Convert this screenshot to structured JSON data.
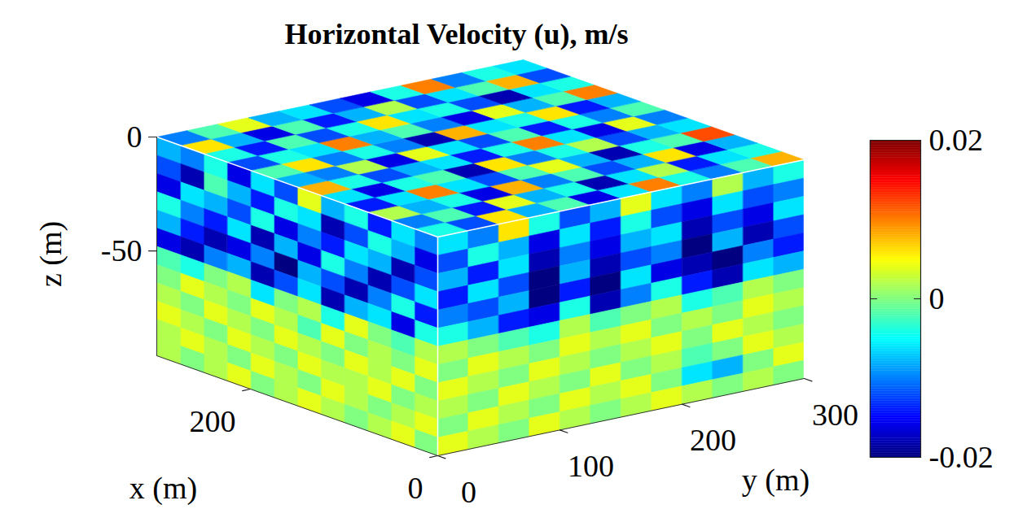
{
  "chart_data": {
    "type": "volume",
    "title": "Horizontal Velocity (u), m/s",
    "xlabel": "x (m)",
    "ylabel": "y (m)",
    "zlabel": "z (m)",
    "xlim": [
      0,
      300
    ],
    "ylim": [
      0,
      300
    ],
    "zlim": [
      -96,
      0
    ],
    "xticks": [
      0,
      200
    ],
    "yticks": [
      0,
      100,
      200,
      300
    ],
    "zticks": [
      0,
      -50
    ],
    "colorbar": {
      "range": [
        -0.02,
        0.02
      ],
      "ticks": [
        -0.02,
        0,
        0.02
      ]
    },
    "faces": {
      "top": {
        "values": [
          [
            -0.004,
            -0.012,
            0.006,
            -0.008,
            -0.002,
            -0.016,
            -0.006,
            0.01,
            -0.004,
            -0.01,
            -0.002,
            0.008
          ],
          [
            -0.01,
            -0.002,
            -0.014,
            0.004,
            -0.008,
            -0.004,
            -0.018,
            -0.006,
            0.002,
            -0.014,
            -0.006,
            -0.004
          ],
          [
            0.002,
            -0.008,
            -0.004,
            -0.016,
            0.008,
            -0.01,
            -0.002,
            -0.012,
            -0.008,
            0.006,
            -0.016,
            -0.008
          ],
          [
            -0.014,
            -0.006,
            0.01,
            -0.006,
            -0.012,
            -0.002,
            0.004,
            -0.008,
            -0.018,
            -0.004,
            -0.002,
            0.012
          ],
          [
            -0.006,
            -0.016,
            -0.004,
            -0.002,
            -0.018,
            0.006,
            -0.01,
            -0.004,
            0.002,
            -0.012,
            -0.008,
            -0.006
          ],
          [
            0.008,
            -0.004,
            -0.012,
            -0.008,
            -0.006,
            -0.014,
            -0.004,
            0.01,
            -0.006,
            -0.016,
            0.004,
            -0.01
          ],
          [
            -0.008,
            -0.01,
            0.002,
            -0.016,
            0.004,
            -0.006,
            -0.012,
            -0.002,
            -0.014,
            -0.004,
            -0.01,
            -0.002
          ],
          [
            -0.002,
            0.006,
            -0.01,
            -0.004,
            -0.01,
            -0.018,
            0.008,
            -0.006,
            -0.004,
            0.006,
            -0.014,
            -0.008
          ],
          [
            -0.012,
            -0.004,
            -0.006,
            0.01,
            -0.008,
            -0.002,
            -0.01,
            -0.016,
            0.004,
            -0.008,
            -0.002,
            0.01
          ],
          [
            -0.004,
            -0.014,
            -0.002,
            -0.012,
            -0.004,
            0.006,
            -0.006,
            -0.004,
            -0.012,
            -0.018,
            -0.006,
            -0.004
          ],
          [
            0.006,
            -0.008,
            -0.016,
            -0.002,
            -0.014,
            -0.008,
            0.002,
            -0.012,
            -0.006,
            -0.002,
            0.008,
            -0.012
          ],
          [
            -0.01,
            -0.002,
            0.004,
            -0.008,
            -0.006,
            -0.012,
            -0.016,
            -0.004,
            0.01,
            -0.01,
            -0.004,
            -0.006
          ]
        ]
      },
      "y0": {
        "values": [
          [
            -0.01,
            -0.006,
            -0.014,
            -0.004,
            -0.008,
            0.004,
            -0.012,
            -0.006,
            -0.016,
            -0.004,
            -0.01,
            -0.008
          ],
          [
            -0.016,
            -0.008,
            -0.004,
            -0.012,
            -0.018,
            -0.006,
            -0.004,
            -0.014,
            -0.008,
            -0.002,
            -0.018,
            -0.012
          ],
          [
            -0.012,
            -0.018,
            -0.008,
            -0.006,
            -0.014,
            -0.01,
            -0.016,
            -0.004,
            -0.012,
            -0.008,
            -0.006,
            -0.016
          ],
          [
            -0.006,
            -0.012,
            -0.018,
            -0.01,
            -0.004,
            -0.016,
            -0.008,
            -0.018,
            -0.006,
            -0.014,
            -0.01,
            -0.004
          ],
          [
            -0.014,
            -0.004,
            -0.01,
            -0.018,
            -0.012,
            -0.008,
            -0.02,
            -0.01,
            -0.016,
            -0.018,
            -0.014,
            -0.008
          ],
          [
            -0.004,
            -0.016,
            -0.006,
            -0.008,
            -0.018,
            -0.006,
            -0.012,
            -0.018,
            -0.008,
            -0.01,
            -0.018,
            -0.016
          ],
          [
            0.002,
            -0.002,
            0,
            0.004,
            -0.004,
            0.002,
            0,
            -0.006,
            0.002,
            0,
            -0.004,
            -0.002
          ],
          [
            0.004,
            0,
            0.002,
            0,
            0.004,
            -0.002,
            0.002,
            0.004,
            0,
            0.002,
            0.004,
            0
          ],
          [
            0,
            0.004,
            0.002,
            0.004,
            0,
            0.002,
            0.004,
            0,
            0.002,
            0.004,
            0,
            0.002
          ],
          [
            0.002,
            0,
            0.004,
            0.002,
            0.002,
            0.004,
            0,
            0.002,
            0.004,
            0,
            0.002,
            0.004
          ],
          [
            0.004,
            0.002,
            0,
            0.002,
            0.004,
            0,
            0.002,
            0.004,
            0,
            0.002,
            0.004,
            0.002
          ],
          [
            0,
            0.004,
            0.002,
            0,
            0.002,
            0.004,
            0.002,
            0,
            0.004,
            0.002,
            0,
            0.002
          ]
        ]
      },
      "x0": {
        "values": [
          [
            -0.006,
            -0.01,
            0.006,
            -0.004,
            -0.012,
            -0.008,
            0.004,
            -0.006,
            -0.01,
            0.002,
            -0.008,
            -0.004
          ],
          [
            -0.012,
            -0.004,
            -0.008,
            -0.016,
            -0.006,
            -0.014,
            -0.004,
            -0.012,
            -0.016,
            -0.006,
            -0.012,
            -0.01
          ],
          [
            -0.008,
            -0.014,
            -0.006,
            -0.018,
            -0.01,
            -0.016,
            -0.008,
            -0.006,
            -0.018,
            -0.012,
            -0.016,
            -0.006
          ],
          [
            -0.014,
            -0.006,
            -0.012,
            -0.02,
            -0.008,
            -0.018,
            -0.012,
            -0.01,
            -0.02,
            -0.008,
            -0.018,
            -0.012
          ],
          [
            -0.01,
            -0.012,
            -0.008,
            -0.02,
            -0.014,
            -0.02,
            -0.006,
            -0.016,
            -0.018,
            -0.02,
            -0.01,
            -0.014
          ],
          [
            -0.004,
            -0.008,
            -0.014,
            -0.016,
            -0.004,
            -0.018,
            -0.01,
            -0.004,
            -0.014,
            -0.018,
            -0.006,
            -0.008
          ],
          [
            0.002,
            0,
            -0.002,
            -0.004,
            0.002,
            -0.002,
            0,
            0.002,
            -0.004,
            -0.002,
            0.002,
            0
          ],
          [
            0,
            0.004,
            0.002,
            0,
            0.004,
            0.002,
            0.004,
            0,
            0.002,
            0,
            0.004,
            0.002
          ],
          [
            0.004,
            0.002,
            0,
            0.004,
            0.002,
            0,
            0.002,
            0.004,
            0,
            0.004,
            0.002,
            0
          ],
          [
            0.002,
            0,
            0.004,
            0.002,
            0,
            0.004,
            0,
            0.002,
            -0.002,
            0,
            0.004,
            0.002
          ],
          [
            0,
            0.004,
            0.002,
            0,
            0.004,
            0.002,
            0.004,
            0,
            -0.006,
            -0.008,
            0,
            0.004
          ],
          [
            0.004,
            0.002,
            0,
            0.004,
            0.002,
            0,
            0.002,
            0.004,
            0.002,
            0,
            0.002,
            0
          ]
        ]
      }
    }
  }
}
